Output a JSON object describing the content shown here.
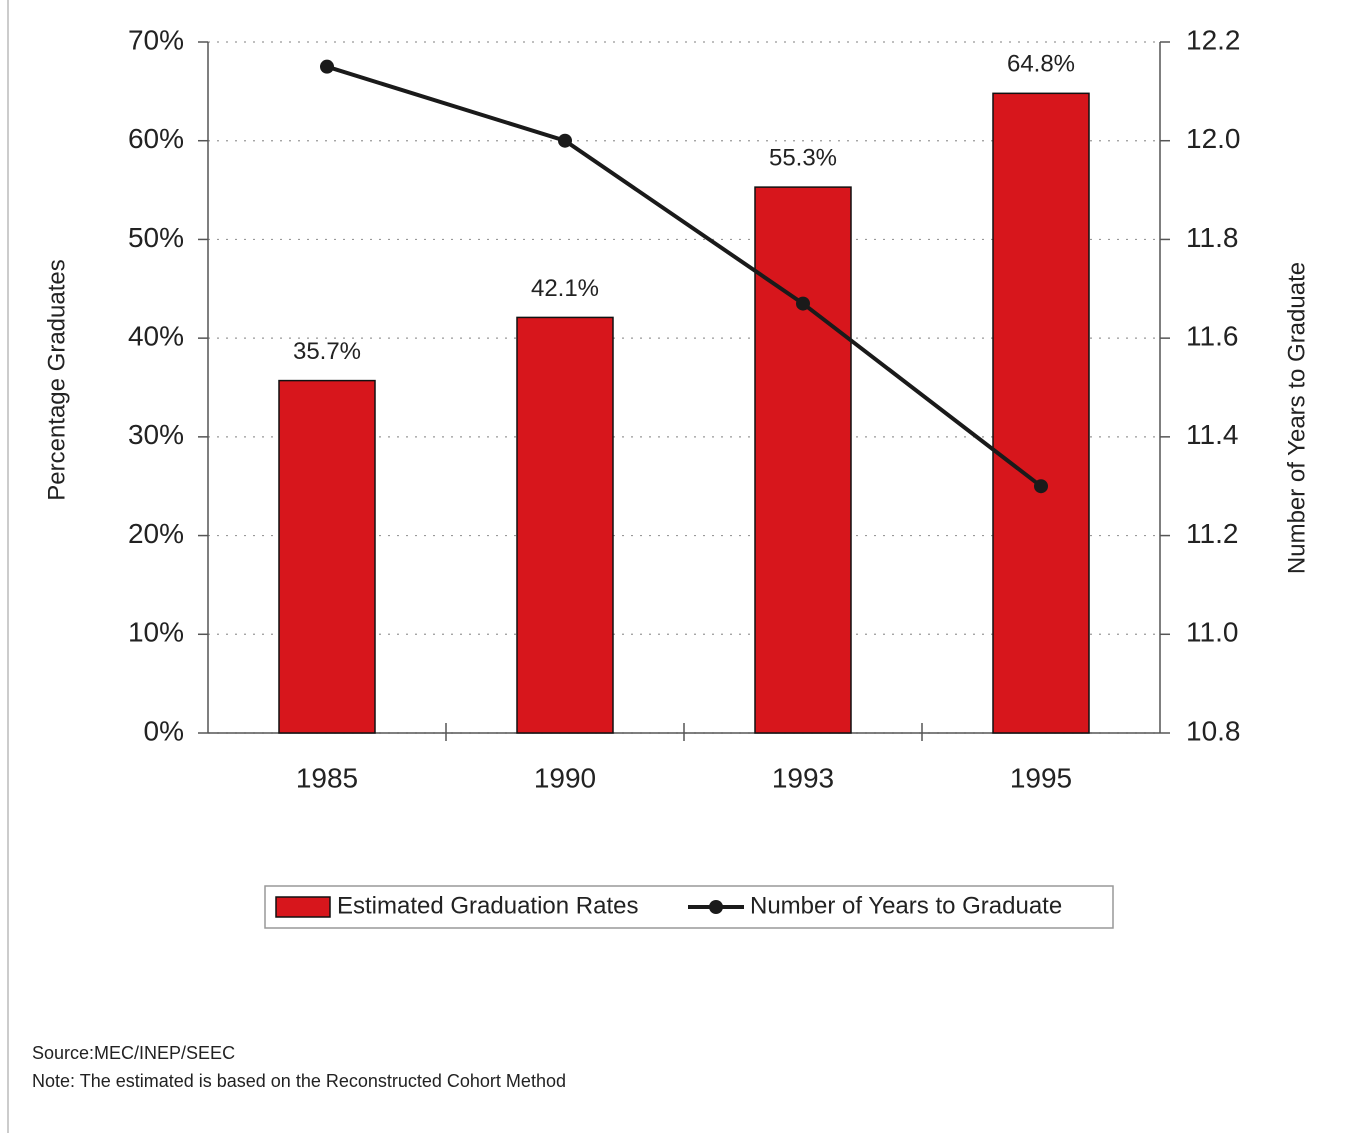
{
  "chart_data": {
    "type": "bar",
    "categories": [
      "1985",
      "1990",
      "1993",
      "1995"
    ],
    "series": [
      {
        "name": "Estimated Graduation Rates",
        "type": "bar",
        "color": "#d7161c",
        "values": [
          35.7,
          42.1,
          55.3,
          64.8
        ],
        "value_labels": [
          "35.7%",
          "42.1%",
          "55.3%",
          "64.8%"
        ]
      },
      {
        "name": "Number of Years to Graduate",
        "type": "line",
        "axis": "y2",
        "color": "#1a1a1a",
        "values": [
          12.15,
          12.0,
          11.67,
          11.3
        ]
      }
    ],
    "ylabel": "Percentage Graduates",
    "y2label": "Number of Years to Graduate",
    "ylim": [
      0,
      70
    ],
    "yticks": [
      {
        "value": 0,
        "label": "0%"
      },
      {
        "value": 10,
        "label": "10%"
      },
      {
        "value": 20,
        "label": "20%"
      },
      {
        "value": 30,
        "label": "30%"
      },
      {
        "value": 40,
        "label": "40%"
      },
      {
        "value": 50,
        "label": "50%"
      },
      {
        "value": 60,
        "label": "60%"
      },
      {
        "value": 70,
        "label": "70%"
      }
    ],
    "y2lim": [
      10.8,
      12.2
    ],
    "y2ticks": [
      10.8,
      {
        "value": 11.0,
        "label": "11.0"
      },
      11.2,
      11.4,
      11.6,
      11.8,
      {
        "value": 12.0,
        "label": "12.0"
      },
      12.2
    ],
    "grid": true,
    "legend": "bottom",
    "notes": [
      "Source:MEC/INEP/SEEC",
      "Note: The estimated is based on the Reconstructed Cohort Method"
    ]
  }
}
